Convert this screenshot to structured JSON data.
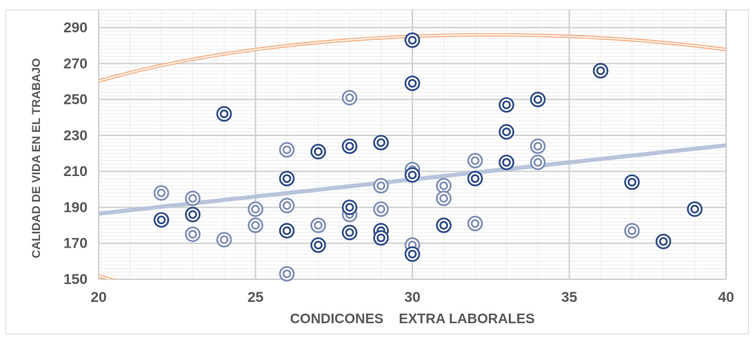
{
  "chart_data": {
    "type": "scatter",
    "xlabel": "CONDICONES    EXTRA LABORALES",
    "ylabel": "CALIDAD DE VIDA EN EL TRABAJO",
    "xlim": [
      20,
      40
    ],
    "ylim": [
      150,
      300
    ],
    "x_ticks": [
      20,
      25,
      30,
      35,
      40
    ],
    "y_ticks": [
      150,
      170,
      190,
      210,
      230,
      250,
      270,
      290
    ],
    "grid": true,
    "series": [
      {
        "color": "#2f4b8a",
        "points": [
          [
            22,
            183
          ],
          [
            23,
            186
          ],
          [
            24,
            242
          ],
          [
            26,
            206
          ],
          [
            26,
            177
          ],
          [
            27,
            169
          ],
          [
            27,
            221
          ],
          [
            28,
            224
          ],
          [
            28,
            190
          ],
          [
            28,
            176
          ],
          [
            29,
            226
          ],
          [
            29,
            177
          ],
          [
            29,
            173
          ],
          [
            30,
            283
          ],
          [
            30,
            259
          ],
          [
            30,
            208
          ],
          [
            30,
            164
          ],
          [
            31,
            180
          ],
          [
            32,
            206
          ],
          [
            33,
            247
          ],
          [
            33,
            232
          ],
          [
            33,
            215
          ],
          [
            34,
            250
          ],
          [
            36,
            266
          ],
          [
            37,
            204
          ],
          [
            38,
            171
          ],
          [
            39,
            189
          ]
        ]
      },
      {
        "color": "#7e8fb7",
        "points": [
          [
            22,
            198
          ],
          [
            23,
            195
          ],
          [
            23,
            175
          ],
          [
            24,
            172
          ],
          [
            25,
            189
          ],
          [
            25,
            180
          ],
          [
            26,
            222
          ],
          [
            26,
            191
          ],
          [
            26,
            153
          ],
          [
            27,
            180
          ],
          [
            28,
            251
          ],
          [
            28,
            186
          ],
          [
            29,
            202
          ],
          [
            29,
            189
          ],
          [
            30,
            211
          ],
          [
            30,
            169
          ],
          [
            31,
            202
          ],
          [
            31,
            195
          ],
          [
            32,
            216
          ],
          [
            32,
            181
          ],
          [
            34,
            224
          ],
          [
            34,
            215
          ],
          [
            37,
            177
          ]
        ]
      }
    ],
    "trendline": {
      "x": [
        20,
        40
      ],
      "y": [
        186.5,
        224.5
      ],
      "color": "#b8c4dc"
    },
    "ellipse": {
      "color": "#f4b183",
      "center": [
        32.5,
        206
      ],
      "rx": 17,
      "ry": 80
    }
  }
}
